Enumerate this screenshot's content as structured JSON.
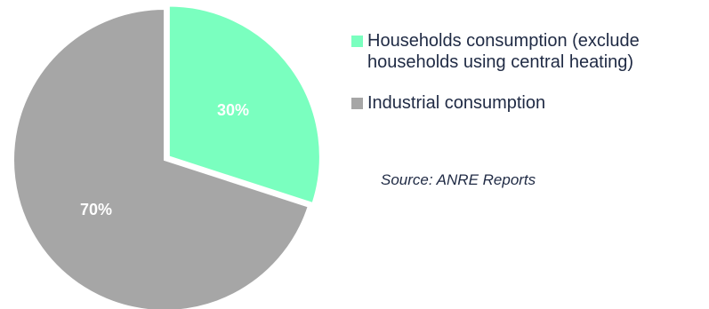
{
  "chart_data": {
    "type": "pie",
    "categories": [
      "Households consumption (exclude households using central heating)",
      "Industrial consumption"
    ],
    "values": [
      30,
      70
    ],
    "value_labels": [
      "30%",
      "70%"
    ],
    "colors": [
      "#7affbf",
      "#a6a6a6"
    ],
    "legend_position": "right",
    "start_angle_deg": 0,
    "direction": "clockwise",
    "exploded": [
      true,
      false
    ]
  },
  "legend": {
    "items": [
      {
        "label_line1": "Households consumption (exclude",
        "label_line2": "households using central heating)",
        "color": "#7affbf"
      },
      {
        "label_line1": "Industrial consumption",
        "label_line2": "",
        "color": "#a6a6a6"
      }
    ]
  },
  "source_note": "Source: ANRE Reports"
}
